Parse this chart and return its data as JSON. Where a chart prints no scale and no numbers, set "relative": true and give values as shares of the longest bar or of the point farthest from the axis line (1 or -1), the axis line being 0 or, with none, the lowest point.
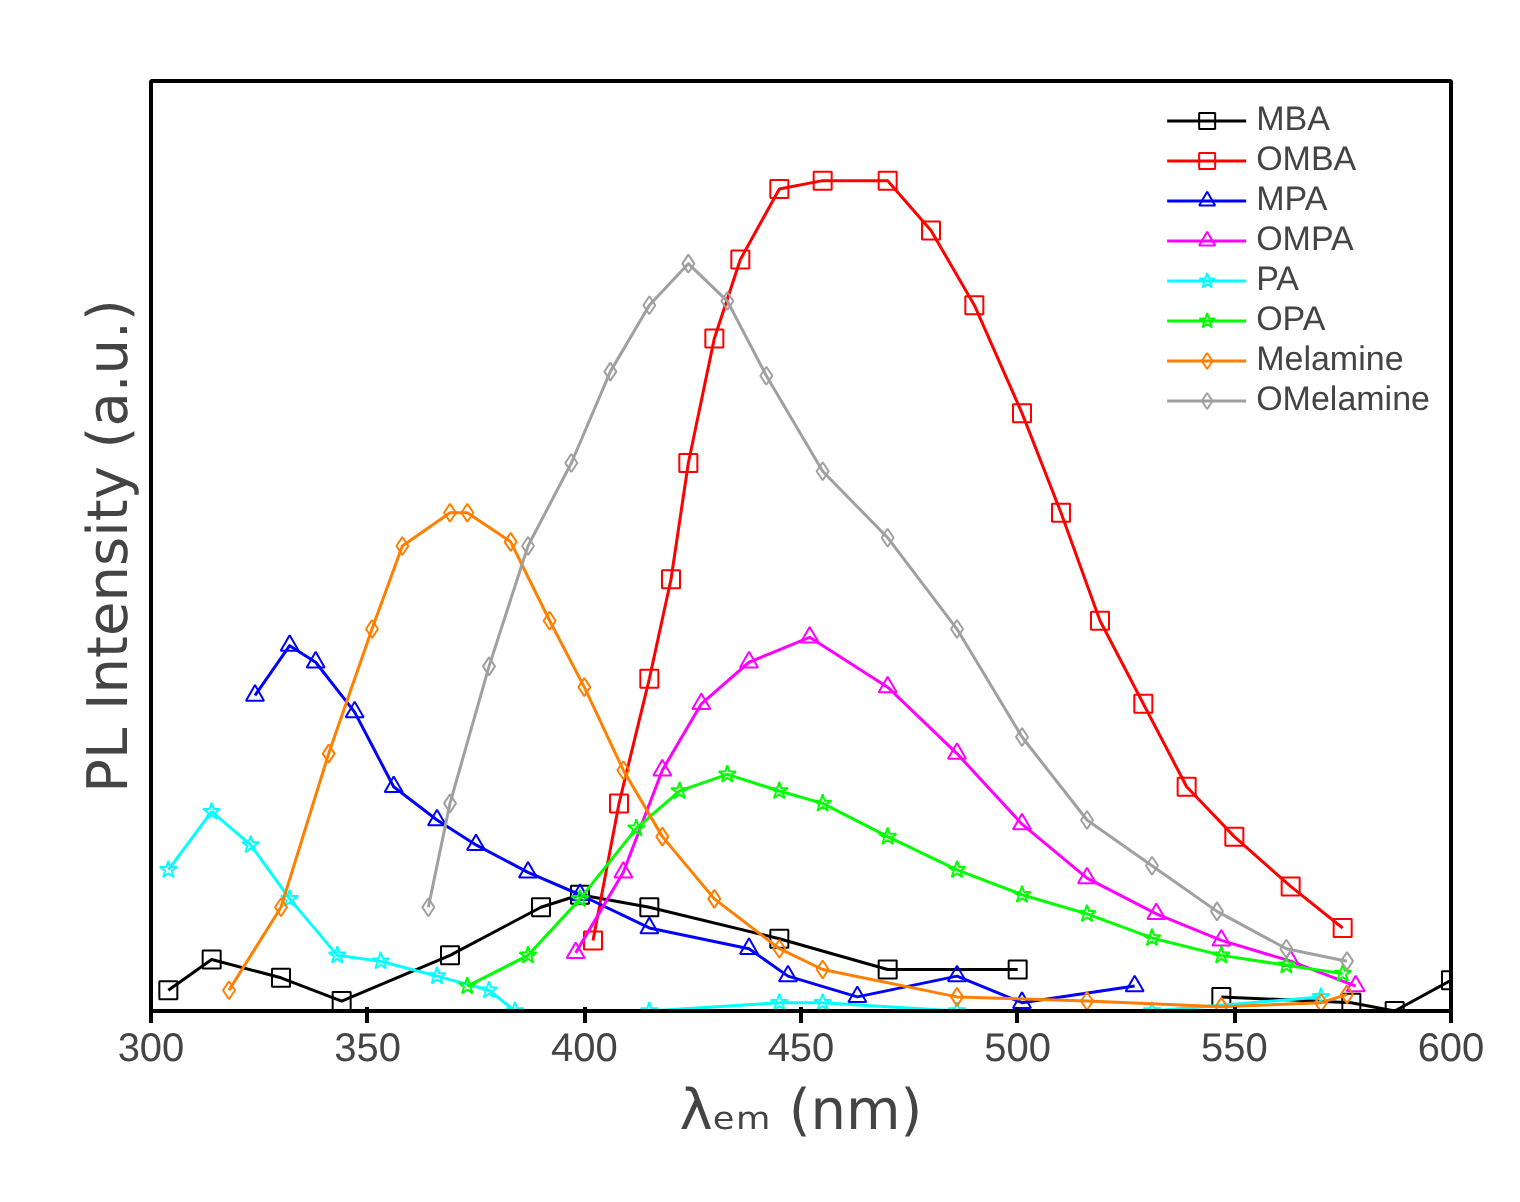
{
  "chart_data": {
    "type": "line",
    "relative": true,
    "xlabel": "λₑₘ (nm)",
    "ylabel": "PL Intensity (a.u.)",
    "xlim": [
      300,
      600
    ],
    "xticks": [
      300,
      350,
      400,
      450,
      500,
      550,
      600
    ],
    "tick_labels": "x",
    "grid": false,
    "legend": "top right",
    "line_style": "solid",
    "series": [
      {
        "name": "MBA",
        "color": "#000000",
        "marker": "square",
        "x": [
          304,
          314,
          330,
          344,
          369,
          390,
          399,
          415,
          445,
          470,
          500,
          522,
          547,
          577,
          587,
          600
        ],
        "values": [
          0.025,
          0.062,
          0.04,
          0.012,
          0.067,
          0.125,
          0.14,
          0.125,
          0.087,
          0.05,
          0.05,
          null,
          0.017,
          0.01,
          0.0,
          0.037
        ]
      },
      {
        "name": "OMBA",
        "color": "#ff0000",
        "marker": "square",
        "x": [
          402,
          408,
          415,
          420,
          424,
          430,
          436,
          445,
          455,
          470,
          480,
          490,
          501,
          510,
          519,
          529,
          539,
          550,
          563,
          575
        ],
        "values": [
          0.085,
          0.25,
          0.4,
          0.52,
          0.66,
          0.81,
          0.905,
          0.99,
          1.0,
          1.0,
          0.94,
          0.85,
          0.72,
          0.6,
          0.47,
          0.37,
          0.27,
          0.21,
          0.15,
          0.1
        ]
      },
      {
        "name": "MPA",
        "color": "#0000ff",
        "marker": "triangle",
        "x": [
          324,
          332,
          338,
          347,
          356,
          366,
          375,
          387,
          399,
          415,
          438,
          447,
          463,
          486,
          501,
          527
        ],
        "values": [
          0.38,
          0.44,
          0.42,
          0.36,
          0.27,
          0.23,
          0.2,
          0.167,
          0.14,
          0.1,
          0.075,
          0.042,
          0.017,
          0.042,
          0.01,
          0.03
        ]
      },
      {
        "name": "OMPA",
        "color": "#ff00ff",
        "marker": "triangle",
        "x": [
          398,
          409,
          418,
          427,
          438,
          452,
          470,
          486,
          501,
          516,
          532,
          547,
          563,
          578
        ],
        "values": [
          0.07,
          0.167,
          0.29,
          0.37,
          0.42,
          0.45,
          0.39,
          0.31,
          0.225,
          0.16,
          0.117,
          0.085,
          0.06,
          0.03
        ]
      },
      {
        "name": "PA",
        "color": "#00ffff",
        "marker": "star",
        "x": [
          304,
          314,
          323,
          332,
          343,
          353,
          366,
          378,
          384,
          415,
          445,
          455,
          486,
          531,
          570
        ],
        "values": [
          0.17,
          0.24,
          0.2,
          0.135,
          0.067,
          0.06,
          0.042,
          0.025,
          0.0,
          0.0,
          0.01,
          0.01,
          0.0,
          0.0,
          0.017
        ]
      },
      {
        "name": "OPA",
        "color": "#00ff00",
        "marker": "star",
        "x": [
          373,
          387,
          399,
          412,
          422,
          433,
          445,
          455,
          470,
          486,
          501,
          516,
          531,
          547,
          562,
          575
        ],
        "values": [
          0.03,
          0.067,
          0.135,
          0.22,
          0.265,
          0.285,
          0.265,
          0.25,
          0.21,
          0.17,
          0.14,
          0.117,
          0.088,
          0.067,
          0.055,
          0.045
        ]
      },
      {
        "name": "Melamine",
        "color": "#ff7f00",
        "marker": "diamond",
        "x": [
          318,
          330,
          341,
          351,
          358,
          369,
          373,
          383,
          392,
          400,
          409,
          418,
          430,
          445,
          455,
          486,
          516,
          547,
          570,
          576
        ],
        "values": [
          0.025,
          0.125,
          0.31,
          0.46,
          0.56,
          0.6,
          0.6,
          0.565,
          0.47,
          0.39,
          0.29,
          0.21,
          0.135,
          0.075,
          0.05,
          0.017,
          0.012,
          0.005,
          0.01,
          0.02
        ]
      },
      {
        "name": "OMelamine",
        "color": "#a0a0a0",
        "marker": "diamond",
        "x": [
          364,
          369,
          378,
          387,
          397,
          406,
          415,
          424,
          433,
          442,
          455,
          470,
          486,
          501,
          516,
          531,
          546,
          562,
          576
        ],
        "values": [
          0.125,
          0.25,
          0.415,
          0.56,
          0.66,
          0.77,
          0.85,
          0.9,
          0.855,
          0.765,
          0.65,
          0.57,
          0.46,
          0.33,
          0.23,
          0.175,
          0.12,
          0.075,
          0.06
        ]
      }
    ]
  }
}
